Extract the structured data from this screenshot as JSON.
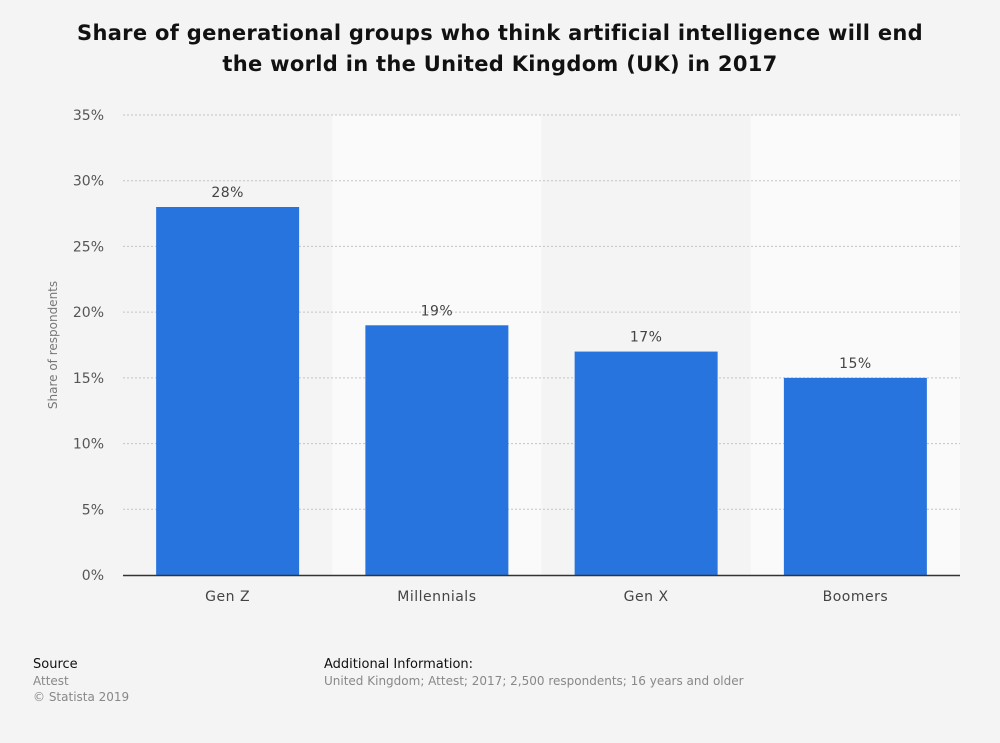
{
  "chart_data": {
    "type": "bar",
    "title": "Share of generational groups who think artificial intelligence will end the world in the United Kingdom (UK) in 2017",
    "categories": [
      "Gen Z",
      "Millennials",
      "Gen X",
      "Boomers"
    ],
    "values": [
      28,
      19,
      17,
      15
    ],
    "value_labels": [
      "28%",
      "19%",
      "17%",
      "15%"
    ],
    "xlabel": "",
    "ylabel": "Share of respondents",
    "ylim": [
      0,
      35
    ],
    "yticks": [
      0,
      5,
      10,
      15,
      20,
      25,
      30,
      35
    ],
    "ytick_labels": [
      "0%",
      "5%",
      "10%",
      "15%",
      "20%",
      "25%",
      "30%",
      "35%"
    ],
    "grid": true,
    "bar_color": "#2874de"
  },
  "footer": {
    "source_heading": "Source",
    "source_name": "Attest",
    "copyright": "© Statista 2019",
    "info_heading": "Additional Information:",
    "info_text": "United Kingdom; Attest; 2017; 2,500 respondents; 16 years and older"
  }
}
